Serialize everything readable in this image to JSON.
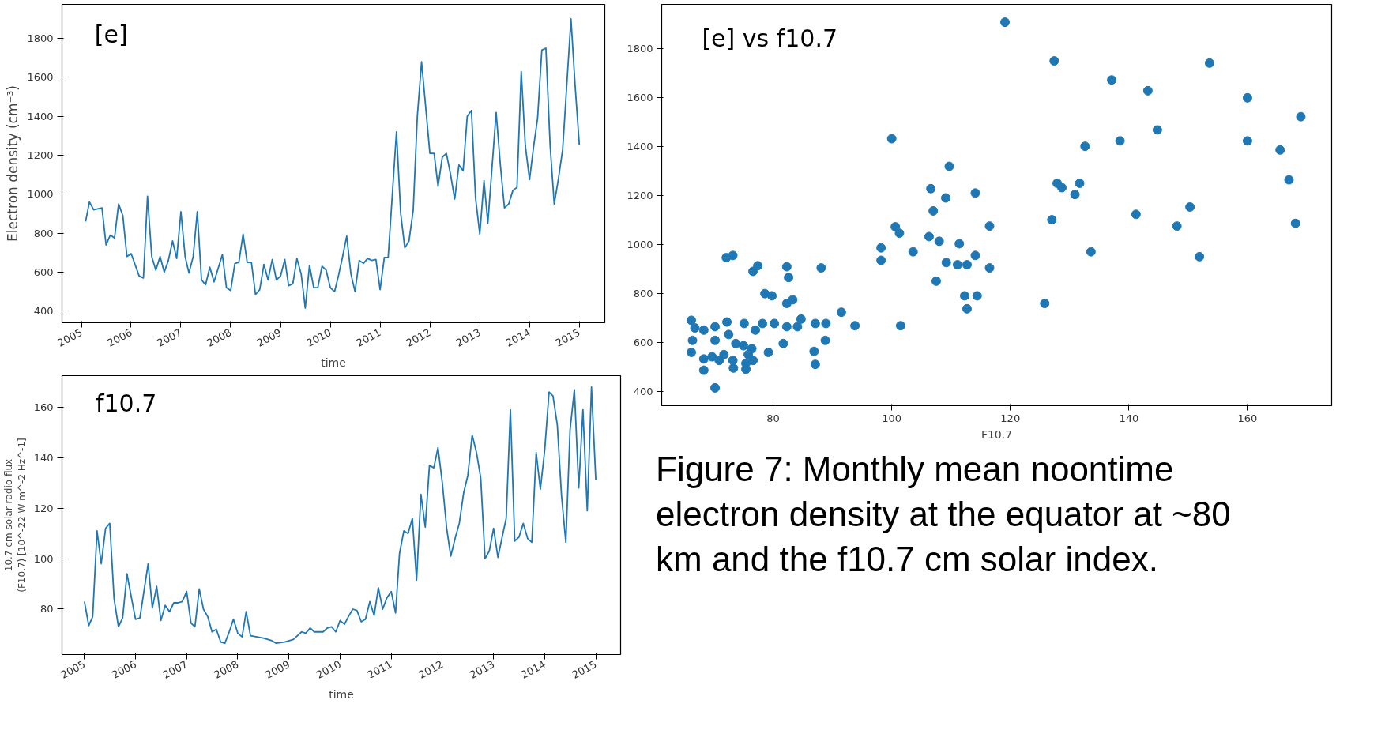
{
  "chart_data": [
    {
      "type": "line",
      "ylabel": "Electron density (cm⁻³)",
      "xlabel": "time",
      "annotations": [
        "[e]"
      ],
      "x": [
        "2005-02",
        "2005-03",
        "2005-04",
        "2005-06",
        "2005-07",
        "2005-08",
        "2005-09",
        "2005-10",
        "2005-11",
        "2005-12",
        "2006-01",
        "2006-03",
        "2006-04",
        "2006-05",
        "2006-06",
        "2006-07",
        "2006-08",
        "2006-09",
        "2006-10",
        "2006-11",
        "2006-12",
        "2007-01",
        "2007-02",
        "2007-03",
        "2007-04",
        "2007-05",
        "2007-06",
        "2007-07",
        "2007-08",
        "2007-09",
        "2007-11",
        "2007-12",
        "2008-01",
        "2008-02",
        "2008-03",
        "2008-04",
        "2008-05",
        "2008-06",
        "2008-07",
        "2008-08",
        "2008-09",
        "2008-10",
        "2008-11",
        "2008-12",
        "2009-01",
        "2009-02",
        "2009-03",
        "2009-04",
        "2009-05",
        "2009-06",
        "2009-07",
        "2009-08",
        "2009-09",
        "2009-10",
        "2009-11",
        "2009-12",
        "2010-01",
        "2010-02",
        "2010-03",
        "2010-04",
        "2010-05",
        "2010-06",
        "2010-07",
        "2010-08",
        "2010-09",
        "2010-10",
        "2010-11",
        "2010-12",
        "2011-01",
        "2011-02",
        "2011-03",
        "2011-05",
        "2011-06",
        "2011-07",
        "2011-08",
        "2011-09",
        "2011-10",
        "2011-11",
        "2011-12",
        "2012-01",
        "2012-02",
        "2012-03",
        "2012-04",
        "2012-05",
        "2012-06",
        "2012-07",
        "2012-08",
        "2012-09",
        "2012-10",
        "2012-11",
        "2012-12",
        "2013-01",
        "2013-02",
        "2013-03",
        "2013-05",
        "2013-06",
        "2013-07",
        "2013-08",
        "2013-09",
        "2013-10",
        "2013-11",
        "2013-12",
        "2014-01",
        "2014-02",
        "2014-03",
        "2014-04",
        "2014-05",
        "2014-06",
        "2014-07",
        "2014-08",
        "2014-09",
        "2014-10",
        "2014-11",
        "2014-12",
        "2015-01"
      ],
      "series": [
        {
          "color": "#1f77b4",
          "values": [
            860,
            960,
            920,
            930,
            740,
            790,
            775,
            950,
            890,
            680,
            695,
            580,
            570,
            990,
            680,
            610,
            680,
            600,
            660,
            760,
            670,
            910,
            680,
            595,
            680,
            910,
            560,
            535,
            625,
            550,
            690,
            520,
            505,
            645,
            650,
            795,
            650,
            650,
            485,
            510,
            640,
            560,
            665,
            560,
            580,
            665,
            530,
            540,
            670,
            590,
            415,
            635,
            520,
            520,
            630,
            610,
            520,
            500,
            580,
            680,
            785,
            590,
            500,
            660,
            645,
            670,
            660,
            665,
            510,
            675,
            675,
            1320,
            900,
            725,
            760,
            920,
            1400,
            1680,
            1450,
            1210,
            1210,
            1040,
            1190,
            1210,
            1100,
            975,
            1150,
            1120,
            1400,
            1430,
            980,
            795,
            1070,
            850,
            1420,
            1150,
            930,
            950,
            1020,
            1035,
            1630,
            1250,
            1075,
            1250,
            1390,
            1740,
            1750,
            1250,
            950,
            1080,
            1230,
            1560,
            1900,
            1560,
            1255
          ]
        }
      ],
      "xlim": [
        "2004-08-12",
        "2015-07-07"
      ],
      "xticks": [
        "2005",
        "2006",
        "2007",
        "2008",
        "2009",
        "2010",
        "2011",
        "2012",
        "2013",
        "2014",
        "2015"
      ],
      "ylim": [
        340,
        1975
      ],
      "yticks": [
        400,
        600,
        800,
        1000,
        1200,
        1400,
        1600,
        1800
      ],
      "grid": false
    },
    {
      "type": "scatter",
      "xlabel": "F10.7",
      "annotations": [
        "[e] vs f10.7",
        "Figure 7:  Monthly mean noontime electron density at the equator at ~80 km and the f10.7 cm solar index."
      ],
      "marker": "circle",
      "series": [
        {
          "color": "#1f77b4",
          "x": [
            119.1,
            127.4,
            153.6,
            137.1,
            143.2,
            160,
            169,
            100,
            144.8,
            132.6,
            138.5,
            160,
            165.5,
            109.7,
            167,
            127.9,
            128.7,
            131.7,
            130.9,
            106.6,
            109.1,
            114.1,
            150.3,
            141.2,
            168.1,
            148.1,
            127,
            107,
            100.6,
            101.3,
            116.5,
            106.3,
            108,
            111.4,
            103.6,
            133.6,
            151.9,
            98.2,
            98.2,
            114.1,
            109.2,
            111.1,
            112.7,
            116.5,
            107.5,
            112.3,
            114.4,
            112.7,
            125.8,
            101.5,
            72.1,
            73.2,
            76.6,
            77.4,
            82.3,
            82.6,
            88.1,
            78.6,
            79.8,
            82.3,
            83.3,
            91.5,
            93.8,
            87.1,
            88.9,
            88.8,
            86.9,
            87.1,
            81.7,
            79.2,
            84.7,
            84.1,
            82.3,
            80.2,
            78.2,
            77,
            75.1,
            72.2,
            70.2,
            68.3,
            66.2,
            66.8,
            66.4,
            66.2,
            68.3,
            68.3,
            70.2,
            69.7,
            70.9,
            71.7,
            70.2,
            72.5,
            73.7,
            73.2,
            73.3,
            75.4,
            75.4,
            75,
            76.4,
            76.6,
            75.8
          ],
          "values": [
            1909,
            1751,
            1742,
            1673,
            1629,
            1600,
            1523,
            1433,
            1469,
            1402,
            1424,
            1424,
            1387,
            1320,
            1265,
            1251,
            1233,
            1251,
            1205,
            1229,
            1191,
            1211,
            1154,
            1124,
            1087,
            1076,
            1102,
            1138,
            1073,
            1047,
            1076,
            1033,
            1014,
            1004,
            971,
            971,
            951,
            987,
            936,
            956,
            927,
            918,
            918,
            905,
            851,
            791,
            791,
            738,
            760,
            669,
            947,
            956,
            891,
            914,
            910,
            866,
            905,
            800,
            791,
            760,
            775,
            724,
            669,
            678,
            678,
            609,
            564,
            511,
            596,
            560,
            696,
            665,
            665,
            678,
            678,
            651,
            678,
            684,
            665,
            651,
            691,
            660,
            609,
            560,
            533,
            487,
            415,
            542,
            527,
            551,
            609,
            633,
            596,
            527,
            496,
            515,
            491,
            587,
            575,
            527,
            551
          ]
        }
      ],
      "xlim": [
        61.2,
        174.2
      ],
      "xticks": [
        80,
        100,
        120,
        140,
        160
      ],
      "ylim": [
        342,
        1982
      ],
      "yticks": [
        400,
        600,
        800,
        1000,
        1200,
        1400,
        1600,
        1800
      ],
      "grid": false
    },
    {
      "type": "line",
      "ylabel": "10.7 cm solar radio flux\n(F10.7) [10^-22 W m^-2 Hz^-1]",
      "xlabel": "time",
      "annotations": [
        "f10.7"
      ],
      "x": [
        "2005-01",
        "2005-02",
        "2005-03",
        "2005-04",
        "2005-05",
        "2005-06",
        "2005-07",
        "2005-08",
        "2005-09",
        "2005-10",
        "2005-11",
        "2005-12",
        "2006-01",
        "2006-02",
        "2006-04",
        "2006-05",
        "2006-06",
        "2006-07",
        "2006-08",
        "2006-09",
        "2006-10",
        "2006-11",
        "2006-12",
        "2007-01",
        "2007-02",
        "2007-03",
        "2007-04",
        "2007-05",
        "2007-06",
        "2007-07",
        "2007-08",
        "2007-09",
        "2007-10",
        "2007-11",
        "2007-12",
        "2008-01",
        "2008-02",
        "2008-03",
        "2008-04",
        "2008-07",
        "2008-09",
        "2008-10",
        "2008-12",
        "2009-02",
        "2009-04",
        "2009-05",
        "2009-06",
        "2009-07",
        "2009-08",
        "2009-09",
        "2009-10",
        "2009-11",
        "2009-12",
        "2010-01",
        "2010-02",
        "2010-03",
        "2010-04",
        "2010-05",
        "2010-06",
        "2010-07",
        "2010-08",
        "2010-09",
        "2010-10",
        "2010-11",
        "2010-12",
        "2011-01",
        "2011-02",
        "2011-03",
        "2011-04",
        "2011-05",
        "2011-06",
        "2011-07",
        "2011-08",
        "2011-09",
        "2011-10",
        "2011-11",
        "2011-12",
        "2012-01",
        "2012-02",
        "2012-03",
        "2012-04",
        "2012-05",
        "2012-06",
        "2012-07",
        "2012-08",
        "2012-09",
        "2012-10",
        "2012-11",
        "2012-12",
        "2013-01",
        "2013-02",
        "2013-03",
        "2013-04",
        "2013-05",
        "2013-06",
        "2013-07",
        "2013-08",
        "2013-09",
        "2013-10",
        "2013-11",
        "2013-12",
        "2014-01",
        "2014-02",
        "2014-03",
        "2014-04",
        "2014-05",
        "2014-06",
        "2014-07",
        "2014-08",
        "2014-09",
        "2014-10",
        "2014-11",
        "2014-12",
        "2015-01"
      ],
      "series": [
        {
          "color": "#1f77b4",
          "values": [
            83,
            73.5,
            77,
            111,
            98,
            112,
            114,
            84,
            73,
            76.5,
            94,
            85,
            76,
            76.5,
            98,
            80.5,
            89,
            75.5,
            81.5,
            79,
            82.5,
            82.5,
            83,
            87,
            74.5,
            73,
            88,
            80,
            77,
            71,
            72,
            67,
            66.5,
            71,
            76,
            70.5,
            69,
            79,
            69.5,
            68.5,
            67.5,
            66.5,
            67,
            68,
            71,
            70.5,
            72.5,
            71,
            71,
            71,
            72.5,
            73,
            71,
            75.5,
            74,
            77,
            80,
            79.5,
            75,
            76,
            83,
            77.5,
            88.5,
            80,
            84.5,
            87,
            78.5,
            102,
            111,
            110,
            116,
            91.5,
            125.5,
            112.5,
            137,
            136,
            144,
            130,
            112,
            101,
            108,
            114,
            126,
            133,
            149,
            142,
            132,
            100,
            103,
            112,
            100.5,
            108,
            116,
            159,
            107,
            108.5,
            114,
            108,
            106.5,
            142,
            127.5,
            143,
            166,
            164.5,
            153,
            125,
            106.5,
            151,
            167,
            128,
            159,
            119,
            168,
            131
          ]
        }
      ],
      "xlim": [
        "2004-07-25",
        "2015-06-27"
      ],
      "xticks": [
        "2005",
        "2006",
        "2007",
        "2008",
        "2009",
        "2010",
        "2011",
        "2012",
        "2013",
        "2014",
        "2015"
      ],
      "ylim": [
        62,
        172.5
      ],
      "yticks": [
        80,
        100,
        120,
        140,
        160
      ],
      "grid": false
    }
  ]
}
